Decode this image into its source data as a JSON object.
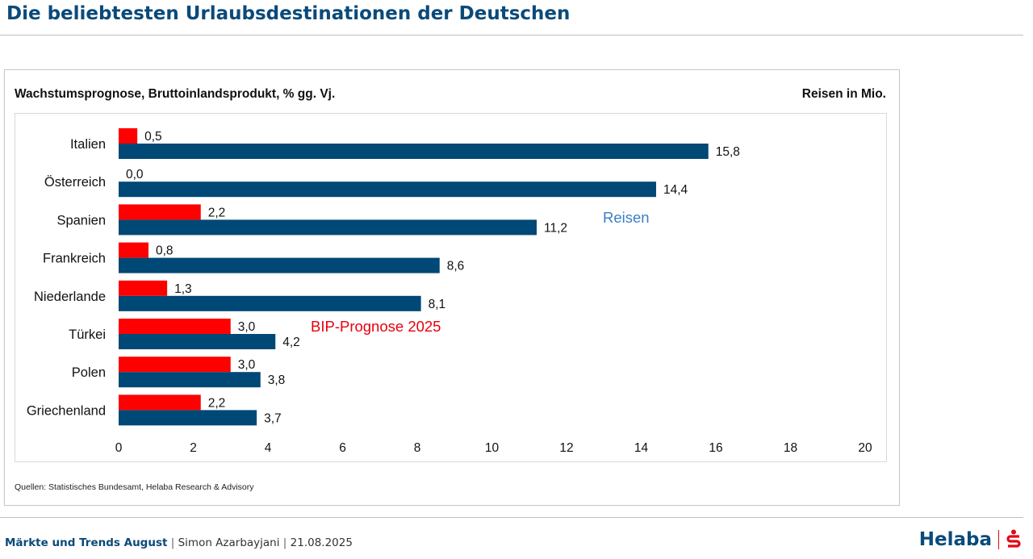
{
  "header": {
    "title": "Die beliebtesten Urlaubsdestinationen der Deutschen"
  },
  "chart": {
    "subtitle": "Wachstumsprognose, Bruttoinlandsprodukt, % gg. Vj.",
    "unit_label": "Reisen in Mio.",
    "source": "Quellen: Statistisches Bundesamt, Helaba Research & Advisory"
  },
  "chart_data": {
    "type": "bar",
    "orientation": "horizontal",
    "categories": [
      "Italien",
      "Österreich",
      "Spanien",
      "Frankreich",
      "Niederlande",
      "Türkei",
      "Polen",
      "Griechenland"
    ],
    "series": [
      {
        "name": "BIP-Prognose 2025",
        "color": "#ff0000",
        "values": [
          0.5,
          0.0,
          2.2,
          0.8,
          1.3,
          3.0,
          3.0,
          2.2
        ],
        "labels": [
          "0,5",
          "0,0",
          "2,2",
          "0,8",
          "1,3",
          "3,0",
          "3,0",
          "2,2"
        ]
      },
      {
        "name": "Reisen",
        "color": "#004875",
        "values": [
          15.8,
          14.4,
          11.2,
          8.6,
          8.1,
          4.2,
          3.8,
          3.7
        ],
        "labels": [
          "15,8",
          "14,4",
          "11,2",
          "8,6",
          "8,1",
          "4,2",
          "3,8",
          "3,7"
        ]
      }
    ],
    "annotations": [
      {
        "text": "Reisen",
        "color": "#3a7fc4"
      },
      {
        "text": "BIP-Prognose 2025",
        "color": "#e8000d"
      }
    ],
    "xlim": [
      0,
      20
    ],
    "xticks": [
      0,
      2,
      4,
      6,
      8,
      10,
      12,
      14,
      16,
      18,
      20
    ],
    "grid": false
  },
  "footer": {
    "report": "Märkte und Trends August",
    "author": "Simon Azarbayjani",
    "date": "21.08.2025",
    "separator": "|",
    "brand": "Helaba"
  }
}
